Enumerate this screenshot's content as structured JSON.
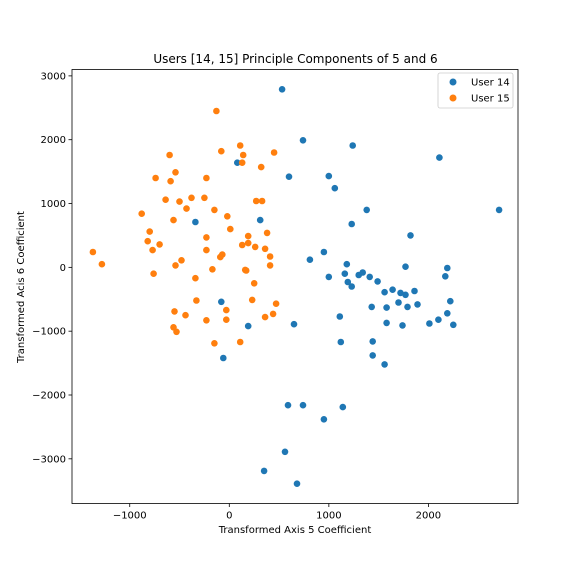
{
  "chart_data": {
    "type": "scatter",
    "title": "Users [14, 15] Principle Components of 5 and 6",
    "xlabel": "Transformed Axis 5 Coefficient",
    "ylabel": "Transformed Acis 6 Coefficient",
    "xlim": [
      -1580,
      2900
    ],
    "ylim": [
      -3700,
      3100
    ],
    "xticks": [
      -1000,
      0,
      1000,
      2000
    ],
    "yticks": [
      -3000,
      -2000,
      -1000,
      0,
      1000,
      2000,
      3000
    ],
    "tick_labels_x": [
      "−1000",
      "0",
      "1000",
      "2000"
    ],
    "tick_labels_y": [
      "−3000",
      "−2000",
      "−1000",
      "0",
      "1000",
      "2000",
      "3000"
    ],
    "grid": false,
    "legend_position": "top-right",
    "series": [
      {
        "name": "User 14",
        "color": "#1f77b4",
        "points": [
          [
            530,
            2790
          ],
          [
            740,
            1990
          ],
          [
            1240,
            1910
          ],
          [
            2110,
            1720
          ],
          [
            2710,
            900
          ],
          [
            1000,
            1430
          ],
          [
            1060,
            1240
          ],
          [
            600,
            1420
          ],
          [
            80,
            1640
          ],
          [
            1380,
            900
          ],
          [
            310,
            740
          ],
          [
            -340,
            710
          ],
          [
            1230,
            680
          ],
          [
            1820,
            500
          ],
          [
            950,
            240
          ],
          [
            810,
            120
          ],
          [
            1180,
            50
          ],
          [
            1770,
            10
          ],
          [
            2190,
            -10
          ],
          [
            1000,
            -150
          ],
          [
            1160,
            -100
          ],
          [
            1300,
            -120
          ],
          [
            1340,
            -80
          ],
          [
            1410,
            -150
          ],
          [
            2170,
            -140
          ],
          [
            1190,
            -230
          ],
          [
            1230,
            -300
          ],
          [
            1490,
            -220
          ],
          [
            1640,
            -350
          ],
          [
            1560,
            -390
          ],
          [
            1720,
            -400
          ],
          [
            1770,
            -430
          ],
          [
            1860,
            -370
          ],
          [
            2220,
            -530
          ],
          [
            1430,
            -620
          ],
          [
            1580,
            -630
          ],
          [
            1700,
            -550
          ],
          [
            1790,
            -620
          ],
          [
            1890,
            -580
          ],
          [
            2190,
            -720
          ],
          [
            2100,
            -820
          ],
          [
            2010,
            -880
          ],
          [
            2250,
            -900
          ],
          [
            1580,
            -870
          ],
          [
            1740,
            -910
          ],
          [
            -80,
            -540
          ],
          [
            190,
            -920
          ],
          [
            650,
            -890
          ],
          [
            1110,
            -770
          ],
          [
            1120,
            -1170
          ],
          [
            1440,
            -1160
          ],
          [
            1440,
            -1380
          ],
          [
            1560,
            -1520
          ],
          [
            -60,
            -1420
          ],
          [
            590,
            -2160
          ],
          [
            740,
            -2160
          ],
          [
            1140,
            -2190
          ],
          [
            950,
            -2380
          ],
          [
            560,
            -2890
          ],
          [
            350,
            -3190
          ],
          [
            680,
            -3390
          ]
        ]
      },
      {
        "name": "User 15",
        "color": "#ff7f0e",
        "points": [
          [
            -130,
            2450
          ],
          [
            110,
            1910
          ],
          [
            -80,
            1820
          ],
          [
            140,
            1760
          ],
          [
            450,
            1800
          ],
          [
            -600,
            1760
          ],
          [
            130,
            1640
          ],
          [
            320,
            1570
          ],
          [
            -540,
            1490
          ],
          [
            -740,
            1400
          ],
          [
            -590,
            1350
          ],
          [
            -230,
            1400
          ],
          [
            -640,
            1060
          ],
          [
            -500,
            1030
          ],
          [
            -380,
            1090
          ],
          [
            -250,
            1090
          ],
          [
            270,
            1040
          ],
          [
            330,
            1040
          ],
          [
            -430,
            920
          ],
          [
            -150,
            900
          ],
          [
            -880,
            840
          ],
          [
            -560,
            740
          ],
          [
            -20,
            800
          ],
          [
            10,
            600
          ],
          [
            380,
            540
          ],
          [
            -800,
            560
          ],
          [
            -230,
            470
          ],
          [
            190,
            490
          ],
          [
            -820,
            410
          ],
          [
            -700,
            360
          ],
          [
            130,
            350
          ],
          [
            190,
            380
          ],
          [
            260,
            320
          ],
          [
            360,
            290
          ],
          [
            -770,
            270
          ],
          [
            -230,
            270
          ],
          [
            -1370,
            240
          ],
          [
            -70,
            200
          ],
          [
            -90,
            160
          ],
          [
            410,
            170
          ],
          [
            -480,
            110
          ],
          [
            -1280,
            50
          ],
          [
            -540,
            30
          ],
          [
            410,
            30
          ],
          [
            170,
            -50
          ],
          [
            -170,
            -30
          ],
          [
            160,
            -40
          ],
          [
            -760,
            -100
          ],
          [
            -340,
            -170
          ],
          [
            250,
            -250
          ],
          [
            -330,
            -520
          ],
          [
            230,
            -510
          ],
          [
            470,
            -570
          ],
          [
            -550,
            -690
          ],
          [
            -30,
            -670
          ],
          [
            -440,
            -750
          ],
          [
            -230,
            -830
          ],
          [
            -30,
            -820
          ],
          [
            360,
            -780
          ],
          [
            440,
            -730
          ],
          [
            -560,
            -940
          ],
          [
            -530,
            -1010
          ],
          [
            110,
            -1170
          ],
          [
            -150,
            -1190
          ]
        ]
      }
    ]
  }
}
